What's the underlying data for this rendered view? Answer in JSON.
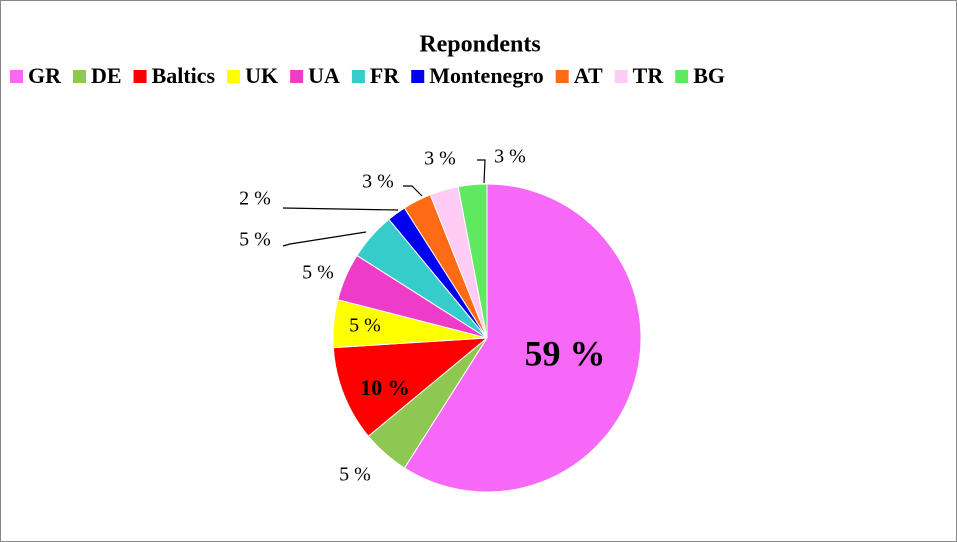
{
  "chart_data": {
    "type": "pie",
    "title": "Repondents",
    "categories": [
      "GR",
      "DE",
      "Baltics",
      "UK",
      "UA",
      "FR",
      "Montenegro",
      "AT",
      "TR",
      "BG"
    ],
    "values": [
      59,
      5,
      10,
      5,
      5,
      5,
      2,
      3,
      3,
      3
    ],
    "value_labels": [
      "59 %",
      "5 %",
      "10 %",
      "5 %",
      "5 %",
      "5 %",
      "2 %",
      "3 %",
      "3 %",
      "3 %"
    ],
    "colors": [
      "#f868f8",
      "#8fc850",
      "#ff0000",
      "#ffff00",
      "#ee3cc8",
      "#36cccc",
      "#0000f0",
      "#ff6a14",
      "#ffccf6",
      "#5fe860"
    ],
    "legend": "top"
  }
}
